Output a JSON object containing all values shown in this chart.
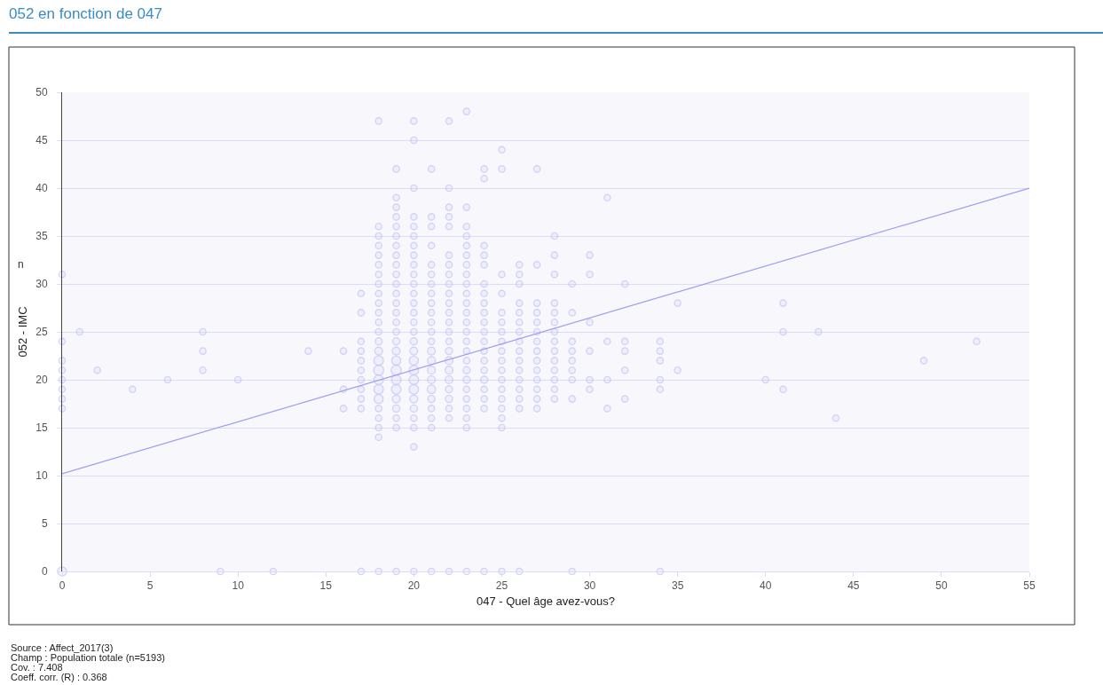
{
  "chart_data": {
    "type": "bubble",
    "title": "052 en fonction de 047",
    "xlabel": "047 - Quel âge avez-vous?",
    "ylabel": "052 - IMC",
    "annotations": [
      "n",
      "Source : Affect_2017(3)",
      "Champ : Population totale (n=5193)",
      "Cov. : 7.408",
      "Coeff. corr. (R) : 0.368"
    ],
    "xlim": [
      0,
      55
    ],
    "xticks": [
      0,
      5,
      10,
      15,
      20,
      25,
      30,
      35,
      40,
      45,
      50,
      55
    ],
    "ylim": [
      0,
      50
    ],
    "yticks": [
      0,
      5,
      10,
      15,
      20,
      25,
      30,
      35,
      40,
      45,
      50
    ],
    "grid": "y",
    "series": [
      {
        "color": "#c3c3f5",
        "marker": "circle",
        "x": [
          0,
          0,
          0,
          0,
          0,
          0,
          0,
          0,
          0,
          1,
          2,
          4,
          6,
          8,
          8,
          8,
          9,
          10,
          12,
          14,
          16,
          16,
          16,
          17,
          17,
          17,
          17,
          17,
          17,
          17,
          17,
          17,
          17,
          17,
          18,
          18,
          18,
          18,
          18,
          18,
          18,
          18,
          18,
          18,
          18,
          18,
          18,
          18,
          18,
          18,
          18,
          18,
          18,
          18,
          18,
          18,
          18,
          18,
          18,
          19,
          19,
          19,
          19,
          19,
          19,
          19,
          19,
          19,
          19,
          19,
          19,
          19,
          19,
          19,
          19,
          19,
          19,
          19,
          19,
          19,
          19,
          19,
          19,
          19,
          19,
          19,
          20,
          20,
          20,
          20,
          20,
          20,
          20,
          20,
          20,
          20,
          20,
          20,
          20,
          20,
          20,
          20,
          20,
          20,
          20,
          20,
          20,
          20,
          20,
          20,
          20,
          20,
          20,
          20,
          21,
          21,
          21,
          21,
          21,
          21,
          21,
          21,
          21,
          21,
          21,
          21,
          21,
          21,
          21,
          21,
          21,
          21,
          21,
          21,
          21,
          21,
          21,
          22,
          22,
          22,
          22,
          22,
          22,
          22,
          22,
          22,
          22,
          22,
          22,
          22,
          22,
          22,
          22,
          22,
          22,
          22,
          22,
          22,
          22,
          22,
          22,
          23,
          23,
          23,
          23,
          23,
          23,
          23,
          23,
          23,
          23,
          23,
          23,
          23,
          23,
          23,
          23,
          23,
          23,
          23,
          23,
          23,
          23,
          23,
          23,
          23,
          24,
          24,
          24,
          24,
          24,
          24,
          24,
          24,
          24,
          24,
          24,
          24,
          24,
          24,
          24,
          24,
          24,
          24,
          24,
          24,
          25,
          25,
          25,
          25,
          25,
          25,
          25,
          25,
          25,
          25,
          25,
          25,
          25,
          25,
          25,
          25,
          25,
          25,
          26,
          26,
          26,
          26,
          26,
          26,
          26,
          26,
          26,
          26,
          26,
          26,
          26,
          26,
          26,
          26,
          27,
          27,
          27,
          27,
          27,
          27,
          27,
          27,
          27,
          27,
          27,
          27,
          27,
          27,
          28,
          28,
          28,
          28,
          28,
          28,
          28,
          28,
          28,
          28,
          28,
          28,
          28,
          28,
          29,
          29,
          29,
          29,
          29,
          29,
          29,
          29,
          29,
          30,
          30,
          30,
          30,
          30,
          30,
          31,
          31,
          31,
          31,
          32,
          32,
          32,
          32,
          32,
          34,
          34,
          34,
          34,
          34,
          34,
          35,
          35,
          40,
          41,
          41,
          41,
          43,
          44,
          49,
          52
        ],
        "values": [
          31,
          24,
          22,
          21,
          20,
          19,
          18,
          17,
          0,
          25,
          21,
          19,
          20,
          25,
          23,
          21,
          0,
          20,
          0,
          23,
          23,
          19,
          17,
          29,
          27,
          24,
          23,
          22,
          21,
          20,
          19,
          18,
          17,
          0,
          47,
          36,
          35,
          34,
          33,
          32,
          31,
          30,
          29,
          28,
          27,
          26,
          25,
          24,
          23,
          22,
          21,
          20,
          19,
          18,
          17,
          16,
          15,
          14,
          0,
          42,
          39,
          38,
          37,
          36,
          35,
          34,
          33,
          32,
          31,
          30,
          29,
          28,
          27,
          26,
          25,
          24,
          23,
          22,
          21,
          20,
          19,
          18,
          17,
          16,
          15,
          0,
          47,
          45,
          40,
          37,
          36,
          35,
          34,
          33,
          32,
          31,
          30,
          29,
          28,
          27,
          26,
          25,
          24,
          23,
          22,
          21,
          20,
          19,
          18,
          17,
          16,
          15,
          13,
          0,
          42,
          37,
          36,
          34,
          32,
          31,
          30,
          29,
          28,
          27,
          26,
          25,
          24,
          23,
          22,
          21,
          20,
          19,
          18,
          17,
          16,
          15,
          0,
          47,
          40,
          38,
          37,
          36,
          33,
          32,
          31,
          30,
          29,
          28,
          27,
          26,
          25,
          24,
          23,
          22,
          21,
          20,
          19,
          18,
          17,
          16,
          0,
          48,
          38,
          36,
          35,
          34,
          33,
          32,
          31,
          30,
          29,
          28,
          27,
          26,
          25,
          24,
          23,
          22,
          21,
          20,
          19,
          18,
          17,
          16,
          15,
          0,
          42,
          41,
          34,
          33,
          32,
          30,
          29,
          28,
          27,
          26,
          25,
          24,
          23,
          22,
          21,
          20,
          19,
          18,
          17,
          0,
          44,
          42,
          31,
          29,
          27,
          26,
          25,
          24,
          23,
          22,
          21,
          20,
          19,
          18,
          17,
          16,
          15,
          0,
          32,
          31,
          30,
          28,
          27,
          26,
          25,
          24,
          23,
          22,
          21,
          20,
          19,
          18,
          17,
          0,
          42,
          32,
          28,
          27,
          26,
          25,
          24,
          23,
          22,
          21,
          20,
          19,
          18,
          17,
          35,
          33,
          31,
          28,
          27,
          26,
          25,
          24,
          23,
          22,
          21,
          20,
          19,
          18,
          30,
          27,
          24,
          23,
          22,
          21,
          20,
          18,
          0,
          33,
          31,
          26,
          23,
          20,
          19,
          39,
          24,
          20,
          17,
          30,
          24,
          23,
          21,
          18,
          24,
          23,
          22,
          20,
          19,
          0,
          28,
          21,
          20,
          28,
          25,
          19,
          25,
          16,
          22,
          24
        ],
        "sizes": [
          0.4,
          0.4,
          0.4,
          0.4,
          0.4,
          0.4,
          0.4,
          0.4,
          0.8,
          0.4,
          0.4,
          0.4,
          0.4,
          0.4,
          0.4,
          0.4,
          0.4,
          0.4,
          0.4,
          0.4,
          0.4,
          0.4,
          0.4,
          0.4,
          0.4,
          0.4,
          0.4,
          0.4,
          0.4,
          0.4,
          0.4,
          0.4,
          0.4,
          0.4,
          0.4,
          0.4,
          0.4,
          0.4,
          0.4,
          0.4,
          0.4,
          0.4,
          0.4,
          0.4,
          0.4,
          0.4,
          0.4,
          0.5,
          0.6,
          0.9,
          1,
          0.9,
          0.9,
          0.8,
          0.4,
          0.4,
          0.4,
          0.4,
          0.4,
          0.4,
          0.4,
          0.4,
          0.4,
          0.4,
          0.4,
          0.4,
          0.4,
          0.4,
          0.4,
          0.4,
          0.4,
          0.4,
          0.4,
          0.4,
          0.4,
          0.5,
          0.6,
          0.8,
          1,
          0.9,
          0.9,
          0.6,
          0.5,
          0.4,
          0.4,
          0.4,
          0.4,
          0.4,
          0.4,
          0.4,
          0.4,
          0.4,
          0.4,
          0.4,
          0.4,
          0.4,
          0.4,
          0.4,
          0.4,
          0.4,
          0.4,
          0.4,
          0.5,
          0.6,
          0.8,
          0.9,
          0.9,
          0.9,
          0.6,
          0.5,
          0.4,
          0.4,
          0.4,
          0.4,
          0.4,
          0.4,
          0.4,
          0.4,
          0.4,
          0.4,
          0.4,
          0.4,
          0.4,
          0.4,
          0.4,
          0.4,
          0.4,
          0.6,
          0.6,
          0.6,
          0.6,
          0.7,
          0.5,
          0.4,
          0.4,
          0.4,
          0.4,
          0.4,
          0.4,
          0.4,
          0.4,
          0.4,
          0.4,
          0.4,
          0.4,
          0.4,
          0.4,
          0.4,
          0.4,
          0.4,
          0.4,
          0.4,
          0.5,
          0.6,
          0.6,
          0.6,
          0.5,
          0.5,
          0.4,
          0.4,
          0.4,
          0.4,
          0.4,
          0.4,
          0.4,
          0.4,
          0.4,
          0.4,
          0.4,
          0.4,
          0.4,
          0.4,
          0.4,
          0.4,
          0.4,
          0.4,
          0.4,
          0.4,
          0.5,
          0.5,
          0.4,
          0.4,
          0.4,
          0.4,
          0.4,
          0.4,
          0.4,
          0.4,
          0.4,
          0.4,
          0.4,
          0.4,
          0.4,
          0.4,
          0.4,
          0.4,
          0.4,
          0.4,
          0.4,
          0.4,
          0.4,
          0.5,
          0.4,
          0.4,
          0.4,
          0.4,
          0.4,
          0.4,
          0.4,
          0.4,
          0.4,
          0.4,
          0.4,
          0.4,
          0.4,
          0.4,
          0.4,
          0.4,
          0.4,
          0.4,
          0.4,
          0.4,
          0.4,
          0.4,
          0.4,
          0.4,
          0.4,
          0.4,
          0.4,
          0.4,
          0.4,
          0.4,
          0.4,
          0.4,
          0.4,
          0.4,
          0.4,
          0.4,
          0.4,
          0.4,
          0.4,
          0.4,
          0.4,
          0.4,
          0.4,
          0.4,
          0.4,
          0.4,
          0.4,
          0.4,
          0.4,
          0.4,
          0.4,
          0.4,
          0.4,
          0.4,
          0.4,
          0.4,
          0.4,
          0.4,
          0.4,
          0.4,
          0.4,
          0.4,
          0.4,
          0.4,
          0.4,
          0.4,
          0.4,
          0.4,
          0.4,
          0.4,
          0.4,
          0.4,
          0.4,
          0.4,
          0.4,
          0.4,
          0.4,
          0.4,
          0.4,
          0.4,
          0.4,
          0.4,
          0.4,
          0.4,
          0.4,
          0.4,
          0.4,
          0.4,
          0.4,
          0.4,
          0.4,
          0.4,
          0.4,
          0.4,
          0.4,
          0.4,
          0.4,
          0.4,
          0.4,
          0.4,
          0.4,
          0.4,
          0.4,
          0.4,
          0.4,
          0.4
        ]
      },
      {
        "type": "line",
        "color": "#9d9df0",
        "x": [
          0,
          55
        ],
        "values": [
          10.2,
          40
        ]
      }
    ]
  }
}
